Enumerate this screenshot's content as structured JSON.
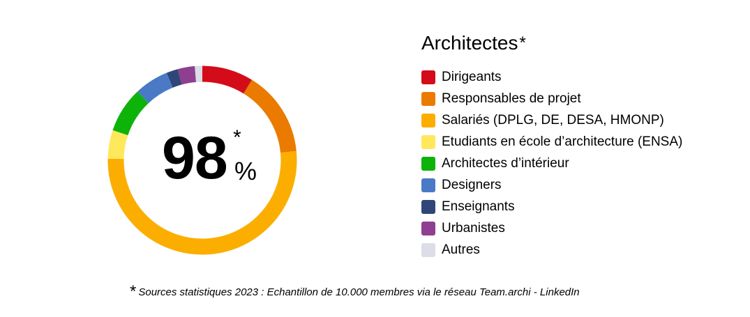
{
  "chart_data": {
    "type": "pie",
    "title": "Architectes",
    "title_marker": "*",
    "center_value": "98",
    "center_marker": "*",
    "center_unit": "%",
    "legend_position": "right",
    "categories": [
      "Dirigeants",
      "Responsables de projet",
      "Salariés (DPLG, DE, DESA, HMONP)",
      "Etudiants en école d’architecture (ENSA)",
      "Architectes d’intérieur",
      "Designers",
      "Enseignants",
      "Urbanistes",
      "Autres"
    ],
    "values": [
      9,
      15,
      53,
      5,
      8,
      6,
      2,
      3,
      1.3
    ],
    "colors": [
      "#d40c19",
      "#ea7b00",
      "#fbae00",
      "#ffe85c",
      "#0db309",
      "#4a7ac5",
      "#2f4678",
      "#8e3f8f",
      "#dcdde6"
    ]
  },
  "footnote": {
    "marker": "*",
    "text": "Sources statistiques 2023 : Echantillon de 10.000 membres via le réseau Team.archi - LinkedIn"
  }
}
